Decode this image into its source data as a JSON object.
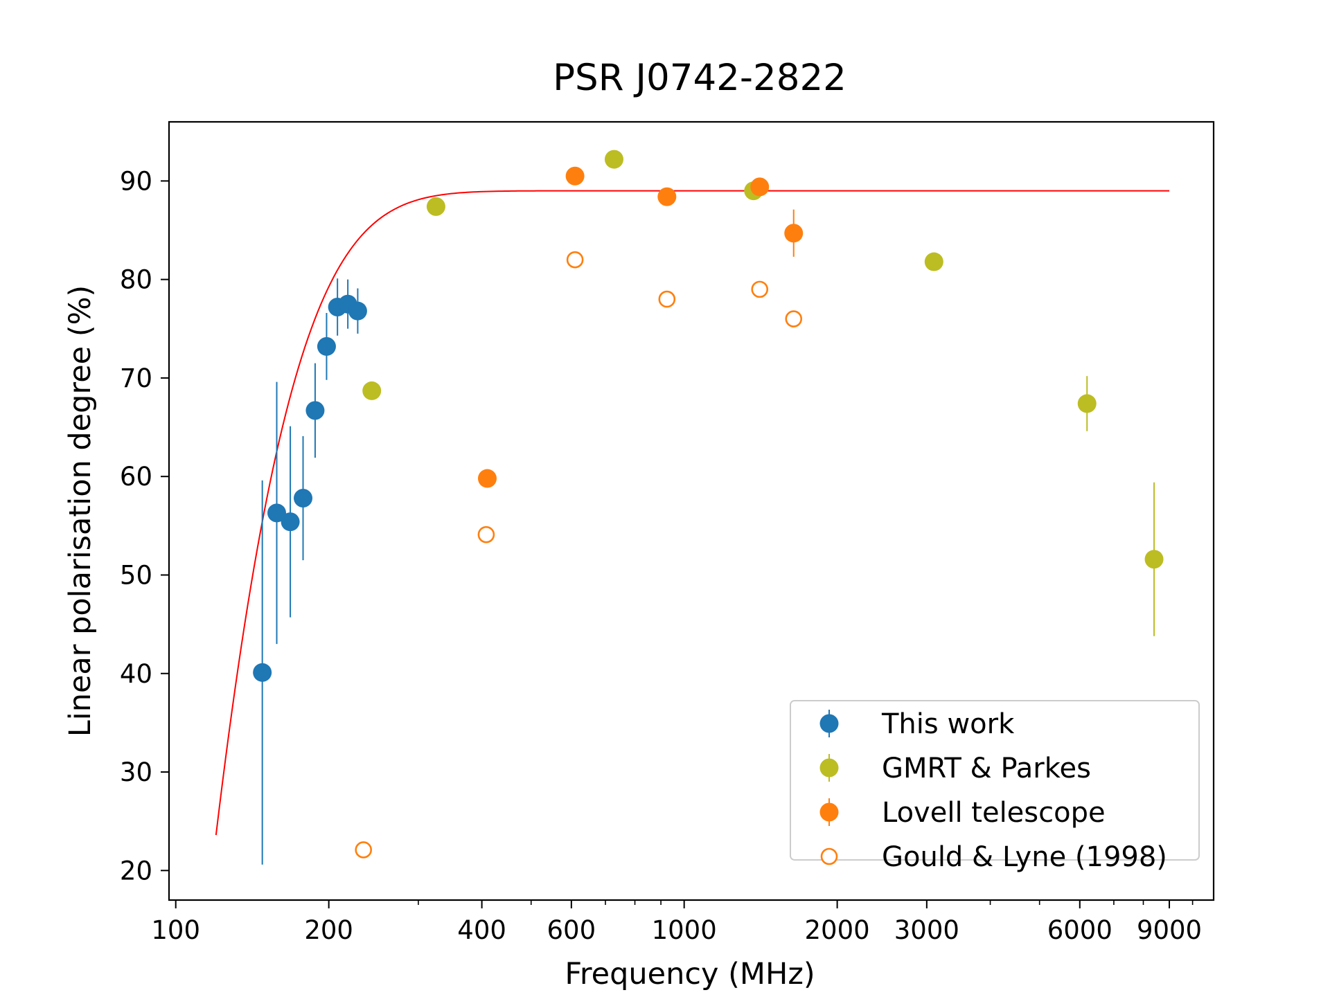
{
  "chart_data": {
    "type": "scatter",
    "title": "PSR J0742-2822",
    "xlabel": "Frequency (MHz)",
    "ylabel": "Linear polarisation degree (%)",
    "xscale": "log",
    "xlim": [
      97,
      11000
    ],
    "ylim": [
      17,
      96
    ],
    "xticks": [
      100,
      200,
      400,
      600,
      1000,
      2000,
      3000,
      6000,
      9000
    ],
    "xtick_labels": [
      "100",
      "200",
      "400",
      "600",
      "1000",
      "2000",
      "3000",
      "6000",
      "9000"
    ],
    "yticks": [
      20,
      30,
      40,
      50,
      60,
      70,
      80,
      90
    ],
    "ytick_labels": [
      "20",
      "30",
      "40",
      "50",
      "60",
      "70",
      "80",
      "90"
    ],
    "legend_position": "bottom-right",
    "series": [
      {
        "name": "This work",
        "color": "#1f77b4",
        "marker": "filled",
        "points": [
          {
            "x": 148,
            "y": 40.1,
            "err": 19.5
          },
          {
            "x": 158,
            "y": 56.3,
            "err": 13.3
          },
          {
            "x": 168,
            "y": 55.4,
            "err": 9.7
          },
          {
            "x": 178,
            "y": 57.8,
            "err": 6.3
          },
          {
            "x": 188,
            "y": 66.7,
            "err": 4.8
          },
          {
            "x": 198,
            "y": 73.2,
            "err": 3.4
          },
          {
            "x": 208,
            "y": 77.2,
            "err": 2.9
          },
          {
            "x": 218,
            "y": 77.5,
            "err": 2.5
          },
          {
            "x": 228,
            "y": 76.8,
            "err": 2.3
          }
        ]
      },
      {
        "name": "GMRT & Parkes",
        "color": "#bcbd22",
        "marker": "filled",
        "points": [
          {
            "x": 243,
            "y": 68.7,
            "err": 0
          },
          {
            "x": 325,
            "y": 87.4,
            "err": 0
          },
          {
            "x": 728,
            "y": 92.2,
            "err": 0
          },
          {
            "x": 1369,
            "y": 89.0,
            "err": 0
          },
          {
            "x": 3100,
            "y": 81.8,
            "err": 0
          },
          {
            "x": 6200,
            "y": 67.4,
            "err": 2.8
          },
          {
            "x": 8400,
            "y": 51.6,
            "err": 7.8
          }
        ]
      },
      {
        "name": "Lovell telescope",
        "color": "#ff7f0e",
        "marker": "filled",
        "points": [
          {
            "x": 410,
            "y": 59.8,
            "err": 0
          },
          {
            "x": 610,
            "y": 90.5,
            "err": 0
          },
          {
            "x": 925,
            "y": 88.4,
            "err": 0
          },
          {
            "x": 1408,
            "y": 89.4,
            "err": 0
          },
          {
            "x": 1642,
            "y": 84.7,
            "err": 2.4
          }
        ]
      },
      {
        "name": "Gould & Lyne (1998)",
        "color": "#ff7f0e",
        "marker": "open",
        "points": [
          {
            "x": 234,
            "y": 22.1
          },
          {
            "x": 408,
            "y": 54.1
          },
          {
            "x": 610,
            "y": 82.0
          },
          {
            "x": 925,
            "y": 78.0
          },
          {
            "x": 1408,
            "y": 79.0
          },
          {
            "x": 1642,
            "y": 76.0
          }
        ]
      }
    ],
    "fit_line": {
      "color": "#ff0000",
      "A": 89.0,
      "nu0": 120,
      "scale": 42,
      "offset": 23.6,
      "x_start": 120,
      "x_end": 9000
    }
  }
}
